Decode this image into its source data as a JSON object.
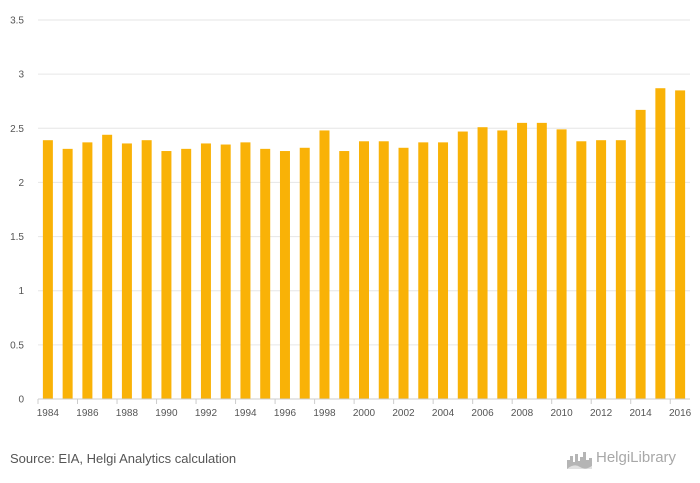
{
  "chart_data": {
    "type": "bar",
    "title": "",
    "xlabel": "",
    "ylabel": "",
    "ylim": [
      0,
      3.5
    ],
    "yticks": [
      0,
      0.5,
      1,
      1.5,
      2,
      2.5,
      3,
      3.5
    ],
    "ytick_labels": [
      "0",
      "0.5",
      "1",
      "1.5",
      "2",
      "2.5",
      "3",
      "3.5"
    ],
    "xtick_labels": [
      "1984",
      "1986",
      "1988",
      "1990",
      "1992",
      "1994",
      "1996",
      "1998",
      "2000",
      "2002",
      "2004",
      "2006",
      "2008",
      "2010",
      "2012",
      "2014",
      "2016"
    ],
    "grid": "horizontal",
    "bar_color": "#f9b207",
    "categories": [
      "1984",
      "1985",
      "1986",
      "1987",
      "1988",
      "1989",
      "1990",
      "1991",
      "1992",
      "1993",
      "1994",
      "1995",
      "1996",
      "1997",
      "1998",
      "1999",
      "2000",
      "2001",
      "2002",
      "2003",
      "2004",
      "2005",
      "2006",
      "2007",
      "2008",
      "2009",
      "2010",
      "2011",
      "2012",
      "2013",
      "2014",
      "2015",
      "2016"
    ],
    "values": [
      2.39,
      2.31,
      2.37,
      2.44,
      2.36,
      2.39,
      2.29,
      2.31,
      2.36,
      2.35,
      2.37,
      2.31,
      2.29,
      2.32,
      2.48,
      2.29,
      2.38,
      2.38,
      2.32,
      2.37,
      2.37,
      2.47,
      2.51,
      2.48,
      2.55,
      2.55,
      2.49,
      2.38,
      2.39,
      2.39,
      2.67,
      2.87,
      2.85
    ]
  },
  "footer": {
    "source": "Source: EIA, Helgi Analytics calculation",
    "logo_text": "HelgiLibrary",
    "logo_icon": "city-skyline-icon"
  }
}
